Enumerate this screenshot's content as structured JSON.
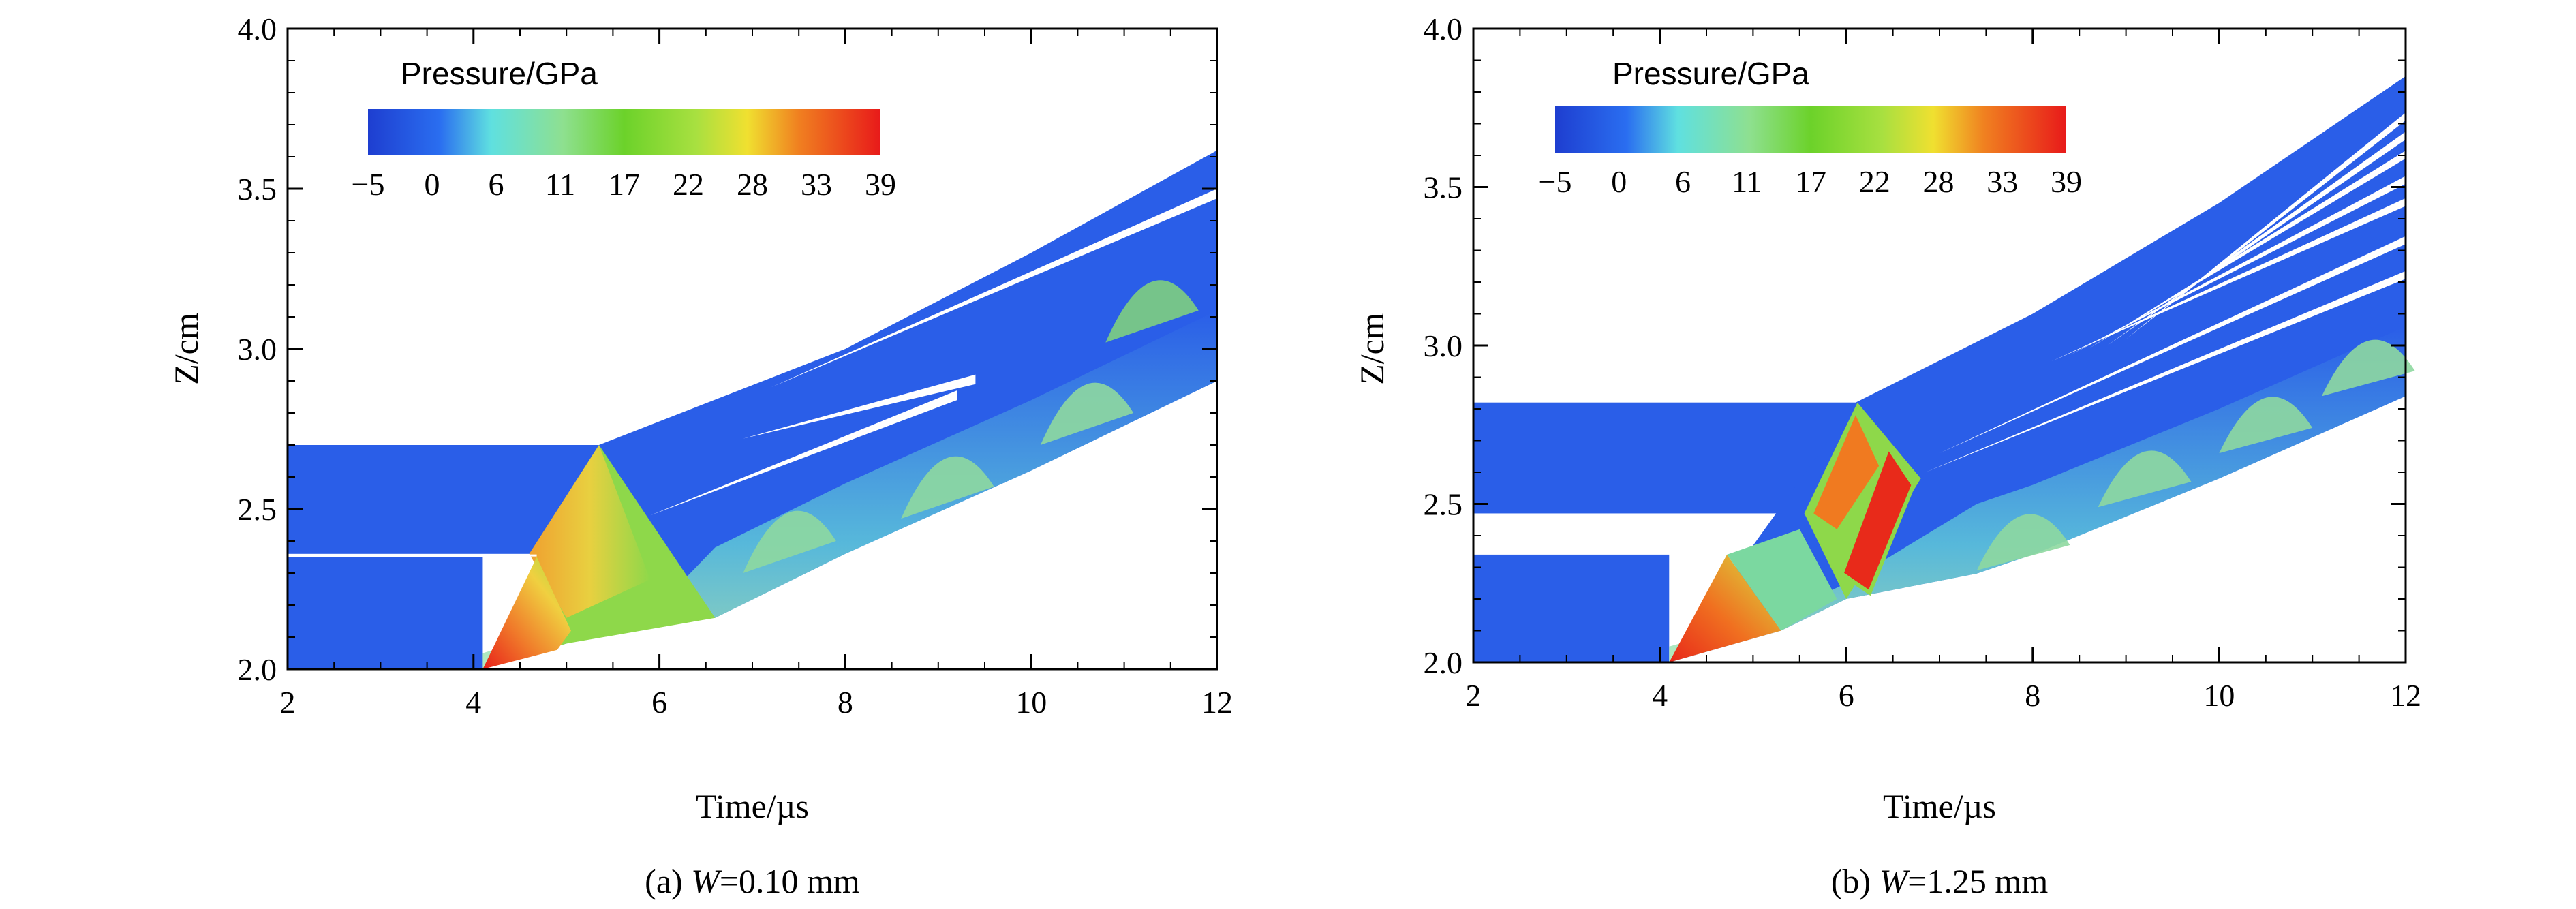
{
  "chart_data": [
    {
      "type": "heatmap",
      "panel": "a",
      "caption_prefix": "(a)",
      "caption_var": "W",
      "caption_value": "=0.10 mm",
      "xlabel": "Time/µs",
      "ylabel": "Z/cm",
      "xlim": [
        2,
        12
      ],
      "ylim": [
        2.0,
        4.0
      ],
      "xticks": [
        "2",
        "4",
        "6",
        "8",
        "10",
        "12"
      ],
      "yticks": [
        "2.0",
        "2.5",
        "3.0",
        "3.5",
        "4.0"
      ],
      "colorbar": {
        "title": "Pressure/GPa",
        "ticks": [
          "−5",
          "0",
          "6",
          "11",
          "17",
          "22",
          "28",
          "33",
          "39"
        ],
        "range": [
          -5,
          39
        ]
      },
      "layers": [
        {
          "t_start": 2.0,
          "t_impact": 4.1,
          "z_bottom": 2.0,
          "z_top": 2.35
        },
        {
          "t_start": 2.0,
          "t_impact": 5.35,
          "z_bottom": 2.36,
          "z_top": 2.7
        }
      ],
      "flyer_bottom_path": [
        [
          4.1,
          2.0
        ],
        [
          5.0,
          2.08
        ],
        [
          6.0,
          2.15
        ],
        [
          6.6,
          2.16
        ],
        [
          8.0,
          2.36
        ],
        [
          10.0,
          2.62
        ],
        [
          12.0,
          2.9
        ]
      ],
      "flyer_top_path": [
        [
          5.35,
          2.7
        ],
        [
          8.0,
          3.0
        ],
        [
          10.0,
          3.3
        ],
        [
          12.0,
          3.62
        ]
      ],
      "peak_pressure_gpa": 39
    },
    {
      "type": "heatmap",
      "panel": "b",
      "caption_prefix": "(b)",
      "caption_var": "W",
      "caption_value": "=1.25 mm",
      "xlabel": "Time/µs",
      "ylabel": "Z/cm",
      "xlim": [
        2,
        12
      ],
      "ylim": [
        2.0,
        4.0
      ],
      "xticks": [
        "2",
        "4",
        "6",
        "8",
        "10",
        "12"
      ],
      "yticks": [
        "2.0",
        "2.5",
        "3.0",
        "3.5",
        "4.0"
      ],
      "colorbar": {
        "title": "Pressure/GPa",
        "ticks": [
          "−5",
          "0",
          "6",
          "11",
          "17",
          "22",
          "28",
          "33",
          "39"
        ],
        "range": [
          -5,
          39
        ]
      },
      "layers": [
        {
          "t_start": 2.0,
          "t_impact": 4.1,
          "z_bottom": 2.0,
          "z_top": 2.34
        },
        {
          "t_start": 2.0,
          "t_impact": 6.1,
          "z_bottom": 2.47,
          "z_top": 2.82
        }
      ],
      "flyer_bottom_path": [
        [
          4.1,
          2.0
        ],
        [
          5.3,
          2.1
        ],
        [
          6.0,
          2.2
        ],
        [
          7.4,
          2.28
        ],
        [
          8.0,
          2.34
        ],
        [
          10.0,
          2.58
        ],
        [
          12.0,
          2.84
        ]
      ],
      "flyer_top_path": [
        [
          6.1,
          2.82
        ],
        [
          8.0,
          3.1
        ],
        [
          10.0,
          3.45
        ],
        [
          12.0,
          3.85
        ]
      ],
      "peak_pressure_gpa": 39
    }
  ],
  "colors": {
    "blue": "#2a5ee8",
    "cyan": "#6fe0c8",
    "green": "#7bd230",
    "yellow": "#e8e040",
    "orange": "#f08020",
    "red": "#e82a1a"
  }
}
